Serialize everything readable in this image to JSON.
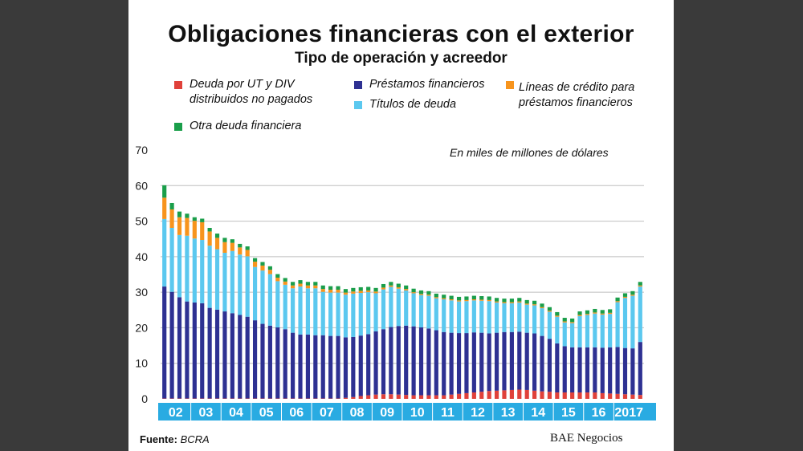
{
  "header": {
    "title": "Obligaciones financieras con el exterior",
    "subtitle": "Tipo de operación y acreedor"
  },
  "unit_note": "En miles de millones de dólares",
  "footer": {
    "source_label": "Fuente:",
    "source_value": "BCRA",
    "brand": "BAE Negocios"
  },
  "colors": {
    "deuda_ut": "#e0413a",
    "prestamos": "#2e3192",
    "lineas": "#f7941d",
    "titulos": "#5bc8ef",
    "otra": "#1a9e4a",
    "axis_band": "#29abe2"
  },
  "chart_data": {
    "type": "bar",
    "stacked": true,
    "ylim": [
      0,
      70
    ],
    "yticks": [
      0,
      10,
      20,
      30,
      40,
      50,
      60,
      70
    ],
    "grid": true,
    "year_labels": [
      "02",
      "03",
      "04",
      "05",
      "06",
      "07",
      "08",
      "09",
      "10",
      "11",
      "12",
      "13",
      "14",
      "15",
      "16",
      "2017"
    ],
    "bars_per_year": 4,
    "series": [
      {
        "name": "Deuda por UT y DIV distribuidos no pagados",
        "key": "deuda_ut",
        "values": [
          0.1,
          0.1,
          0.1,
          0.1,
          0.1,
          0.1,
          0.1,
          0.1,
          0.1,
          0.1,
          0.1,
          0.1,
          0.1,
          0.1,
          0.1,
          0.1,
          0.1,
          0.1,
          0.1,
          0.1,
          0.1,
          0.1,
          0.1,
          0.1,
          0.3,
          0.5,
          0.8,
          1.0,
          1.2,
          1.3,
          1.3,
          1.2,
          1.1,
          1.0,
          1.0,
          1.0,
          1.0,
          1.0,
          1.2,
          1.4,
          1.6,
          1.8,
          2.0,
          2.2,
          2.3,
          2.4,
          2.5,
          2.6,
          2.5,
          2.3,
          2.1,
          2.0,
          1.8,
          1.8,
          1.8,
          1.8,
          1.8,
          1.8,
          1.6,
          1.5,
          1.4,
          1.3,
          1.2,
          1.1
        ]
      },
      {
        "name": "Préstamos financieros",
        "key": "prestamos",
        "values": [
          31.5,
          30.0,
          28.5,
          27.3,
          27.0,
          26.8,
          25.5,
          25.0,
          24.5,
          24.0,
          23.5,
          23.0,
          22.0,
          21.0,
          20.5,
          20.0,
          19.5,
          18.5,
          18.0,
          18.0,
          17.8,
          17.8,
          17.6,
          17.6,
          17.0,
          16.9,
          17.0,
          17.2,
          17.8,
          18.3,
          18.9,
          19.3,
          19.5,
          19.4,
          19.1,
          18.8,
          18.3,
          17.8,
          17.4,
          17.1,
          16.9,
          16.9,
          16.6,
          16.2,
          16.3,
          16.4,
          16.3,
          16.3,
          16.1,
          16.1,
          15.6,
          14.9,
          13.8,
          13.0,
          12.7,
          12.7,
          12.7,
          12.7,
          12.8,
          13.0,
          13.2,
          13.0,
          13.0,
          14.9
        ]
      },
      {
        "name": "Títulos de deuda",
        "key": "titulos",
        "values": [
          19.0,
          18.0,
          17.5,
          18.5,
          18.0,
          17.8,
          17.5,
          17.0,
          16.5,
          17.5,
          17.0,
          17.0,
          15.0,
          15.0,
          14.5,
          13.0,
          12.5,
          12.5,
          13.5,
          13.0,
          13.2,
          12.2,
          12.2,
          12.2,
          12.0,
          12.2,
          12.0,
          11.8,
          10.7,
          11.2,
          11.3,
          10.5,
          9.9,
          9.3,
          9.1,
          9.2,
          9.0,
          9.2,
          9.1,
          8.9,
          9.0,
          9.0,
          9.0,
          9.1,
          8.5,
          8.1,
          8.1,
          8.2,
          7.9,
          7.9,
          7.8,
          7.6,
          7.5,
          6.7,
          6.8,
          8.8,
          9.1,
          9.5,
          9.3,
          9.4,
          12.6,
          14.1,
          14.8,
          15.6
        ]
      },
      {
        "name": "Líneas de crédito para préstamos financieros",
        "key": "lineas",
        "values": [
          6.0,
          5.2,
          5.0,
          5.0,
          5.0,
          5.0,
          4.0,
          3.2,
          3.0,
          2.3,
          2.0,
          1.8,
          1.5,
          1.4,
          1.2,
          1.0,
          0.9,
          0.8,
          0.8,
          0.8,
          0.8,
          0.8,
          0.8,
          0.8,
          0.6,
          0.6,
          0.6,
          0.5,
          0.5,
          0.5,
          0.4,
          0.4,
          0.4,
          0.3,
          0.3,
          0.3,
          0.3,
          0.3,
          0.3,
          0.3,
          0.3,
          0.3,
          0.3,
          0.3,
          0.3,
          0.3,
          0.3,
          0.3,
          0.3,
          0.3,
          0.3,
          0.3,
          0.3,
          0.3,
          0.3,
          0.3,
          0.3,
          0.3,
          0.3,
          0.3,
          0.3,
          0.3,
          0.3,
          0.3
        ]
      },
      {
        "name": "Otra deuda financiera",
        "key": "otra",
        "values": [
          3.5,
          1.8,
          1.6,
          1.2,
          1.0,
          1.0,
          1.0,
          1.2,
          1.2,
          1.0,
          1.0,
          1.0,
          1.0,
          1.0,
          1.0,
          1.0,
          1.0,
          1.0,
          1.0,
          1.0,
          1.0,
          1.0,
          1.0,
          1.0,
          1.0,
          1.0,
          1.0,
          1.0,
          1.0,
          1.0,
          1.0,
          1.0,
          1.0,
          1.0,
          1.0,
          1.0,
          1.0,
          1.0,
          1.0,
          1.0,
          1.0,
          1.0,
          1.0,
          1.0,
          1.0,
          1.0,
          1.0,
          1.0,
          1.0,
          1.0,
          1.0,
          1.0,
          1.0,
          1.0,
          1.0,
          1.0,
          1.0,
          1.0,
          1.0,
          1.0,
          1.0,
          1.0,
          1.0,
          1.0
        ]
      }
    ]
  }
}
